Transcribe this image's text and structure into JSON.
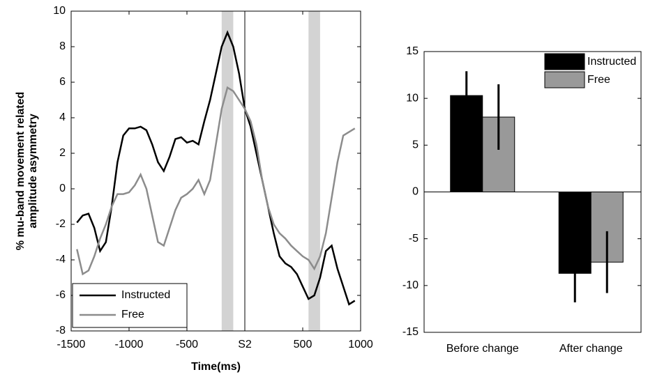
{
  "chart_data": [
    {
      "type": "line",
      "xlabel": "Time(ms)",
      "ylabel": [
        "% mu-band movement related",
        "amplitude asymmetry"
      ],
      "xlim": [
        -1500,
        1000
      ],
      "xticks": [
        -1500,
        -1000,
        -500,
        {
          "value": 0,
          "label": "S2"
        },
        500,
        1000
      ],
      "ylim": [
        -8,
        10
      ],
      "yticks": [
        -8,
        -6,
        -4,
        -2,
        0,
        2,
        4,
        6,
        8,
        10
      ],
      "shaded": [
        [
          -200,
          -100
        ],
        [
          550,
          650
        ]
      ],
      "vline": 0,
      "legend": "lower left",
      "x": [
        -1450,
        -1400,
        -1350,
        -1300,
        -1250,
        -1200,
        -1150,
        -1100,
        -1050,
        -1000,
        -950,
        -900,
        -850,
        -800,
        -750,
        -700,
        -650,
        -600,
        -550,
        -500,
        -450,
        -400,
        -350,
        -300,
        -250,
        -200,
        -150,
        -100,
        -50,
        0,
        50,
        100,
        150,
        200,
        250,
        300,
        350,
        400,
        450,
        500,
        550,
        600,
        650,
        700,
        750,
        800,
        850,
        900,
        950
      ],
      "series": [
        {
          "name": "Instructed",
          "color": "#000000",
          "values": [
            -1.9,
            -1.5,
            -1.4,
            -2.2,
            -3.5,
            -3.0,
            -1.0,
            1.5,
            3.0,
            3.4,
            3.4,
            3.5,
            3.3,
            2.5,
            1.5,
            1.0,
            1.8,
            2.8,
            2.9,
            2.6,
            2.7,
            2.5,
            3.8,
            5.0,
            6.5,
            8.0,
            8.8,
            8.0,
            6.5,
            4.5,
            3.5,
            2.0,
            0.5,
            -1.0,
            -2.5,
            -3.8,
            -4.2,
            -4.4,
            -4.8,
            -5.5,
            -6.2,
            -6.0,
            -5.0,
            -3.5,
            -3.2,
            -4.5,
            -5.5,
            -6.5,
            -6.3
          ]
        },
        {
          "name": "Free",
          "color": "#8c8c8c",
          "values": [
            -3.4,
            -4.8,
            -4.6,
            -3.8,
            -2.8,
            -2.0,
            -1.0,
            -0.3,
            -0.3,
            -0.2,
            0.2,
            0.8,
            0.0,
            -1.5,
            -3.0,
            -3.2,
            -2.2,
            -1.2,
            -0.5,
            -0.3,
            0.0,
            0.5,
            -0.3,
            0.5,
            2.5,
            4.5,
            5.7,
            5.5,
            5.0,
            4.5,
            3.8,
            2.5,
            0.5,
            -1.0,
            -2.0,
            -2.5,
            -2.8,
            -3.2,
            -3.5,
            -3.8,
            -4.0,
            -4.5,
            -3.8,
            -2.5,
            -0.5,
            1.5,
            3.0,
            3.2,
            3.4
          ]
        }
      ]
    },
    {
      "type": "bar",
      "categories": [
        "Before change",
        "After change"
      ],
      "ylim": [
        -15,
        15
      ],
      "yticks": [
        -15,
        -10,
        -5,
        0,
        5,
        10,
        15
      ],
      "legend": "upper right",
      "series": [
        {
          "name": "Instructed",
          "color": "#000000",
          "values": [
            10.3,
            -8.7
          ],
          "errors": [
            2.6,
            3.1
          ]
        },
        {
          "name": "Free",
          "color": "#999999",
          "values": [
            8.0,
            -7.5
          ],
          "errors": [
            3.5,
            3.3
          ]
        }
      ]
    }
  ]
}
